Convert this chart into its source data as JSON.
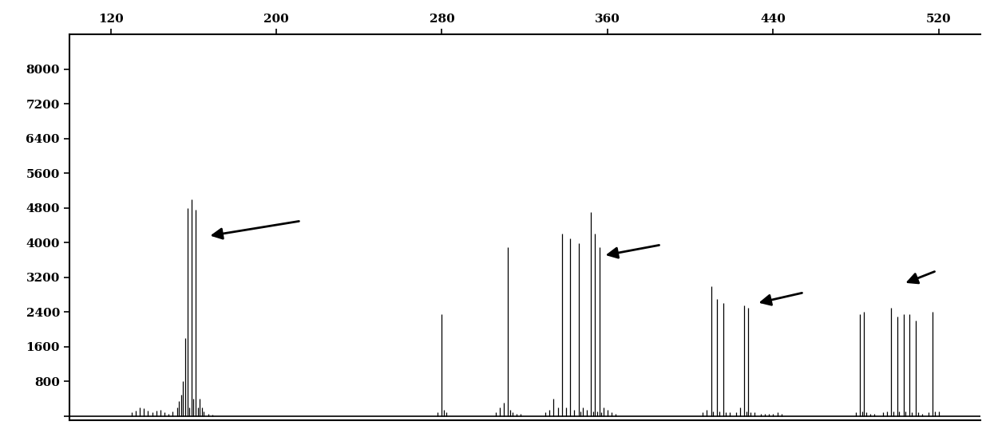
{
  "xlim": [
    100,
    540
  ],
  "ylim": [
    -100,
    8800
  ],
  "xticks": [
    120,
    200,
    280,
    360,
    440,
    520
  ],
  "yticks": [
    0,
    800,
    1600,
    2400,
    3200,
    4000,
    4800,
    5600,
    6400,
    7200,
    8000
  ],
  "background_color": "#ffffff",
  "line_color": "#000000",
  "peaks": [
    [
      130,
      80
    ],
    [
      132,
      120
    ],
    [
      134,
      200
    ],
    [
      136,
      180
    ],
    [
      138,
      120
    ],
    [
      140,
      90
    ],
    [
      142,
      120
    ],
    [
      144,
      150
    ],
    [
      146,
      90
    ],
    [
      148,
      60
    ],
    [
      150,
      100
    ],
    [
      152,
      200
    ],
    [
      153,
      350
    ],
    [
      154,
      500
    ],
    [
      155,
      800
    ],
    [
      156,
      1800
    ],
    [
      157,
      4800
    ],
    [
      158,
      200
    ],
    [
      159,
      5000
    ],
    [
      160,
      400
    ],
    [
      161,
      4750
    ],
    [
      162,
      200
    ],
    [
      163,
      400
    ],
    [
      164,
      200
    ],
    [
      165,
      100
    ],
    [
      167,
      60
    ],
    [
      169,
      40
    ],
    [
      278,
      80
    ],
    [
      280,
      2350
    ],
    [
      281,
      150
    ],
    [
      282,
      80
    ],
    [
      306,
      80
    ],
    [
      308,
      200
    ],
    [
      310,
      300
    ],
    [
      312,
      3900
    ],
    [
      313,
      150
    ],
    [
      314,
      80
    ],
    [
      316,
      60
    ],
    [
      318,
      50
    ],
    [
      330,
      80
    ],
    [
      332,
      150
    ],
    [
      334,
      400
    ],
    [
      336,
      200
    ],
    [
      338,
      4200
    ],
    [
      340,
      200
    ],
    [
      342,
      4100
    ],
    [
      344,
      150
    ],
    [
      346,
      3990
    ],
    [
      347,
      100
    ],
    [
      348,
      200
    ],
    [
      350,
      150
    ],
    [
      352,
      4700
    ],
    [
      353,
      100
    ],
    [
      354,
      4200
    ],
    [
      355,
      100
    ],
    [
      356,
      3900
    ],
    [
      357,
      80
    ],
    [
      358,
      200
    ],
    [
      360,
      150
    ],
    [
      362,
      80
    ],
    [
      364,
      60
    ],
    [
      406,
      80
    ],
    [
      408,
      150
    ],
    [
      410,
      3000
    ],
    [
      411,
      100
    ],
    [
      413,
      2700
    ],
    [
      414,
      100
    ],
    [
      416,
      2600
    ],
    [
      417,
      80
    ],
    [
      419,
      80
    ],
    [
      422,
      80
    ],
    [
      424,
      200
    ],
    [
      426,
      2550
    ],
    [
      427,
      100
    ],
    [
      428,
      2500
    ],
    [
      429,
      80
    ],
    [
      431,
      80
    ],
    [
      434,
      60
    ],
    [
      436,
      50
    ],
    [
      438,
      60
    ],
    [
      440,
      50
    ],
    [
      442,
      80
    ],
    [
      444,
      60
    ],
    [
      480,
      80
    ],
    [
      482,
      2350
    ],
    [
      483,
      100
    ],
    [
      484,
      2400
    ],
    [
      485,
      80
    ],
    [
      487,
      60
    ],
    [
      489,
      50
    ],
    [
      493,
      80
    ],
    [
      495,
      100
    ],
    [
      497,
      2500
    ],
    [
      498,
      100
    ],
    [
      500,
      2300
    ],
    [
      501,
      100
    ],
    [
      503,
      2350
    ],
    [
      504,
      100
    ],
    [
      506,
      2350
    ],
    [
      507,
      80
    ],
    [
      509,
      2200
    ],
    [
      510,
      80
    ],
    [
      512,
      60
    ],
    [
      515,
      80
    ],
    [
      517,
      2400
    ],
    [
      518,
      100
    ],
    [
      520,
      100
    ]
  ],
  "arrows": [
    {
      "tail_x": 212,
      "tail_y": 4500,
      "head_x": 167,
      "head_y": 4150
    },
    {
      "tail_x": 386,
      "tail_y": 3950,
      "head_x": 358,
      "head_y": 3700
    },
    {
      "tail_x": 455,
      "tail_y": 2850,
      "head_x": 432,
      "head_y": 2600
    },
    {
      "tail_x": 519,
      "tail_y": 3350,
      "head_x": 503,
      "head_y": 3050
    }
  ]
}
